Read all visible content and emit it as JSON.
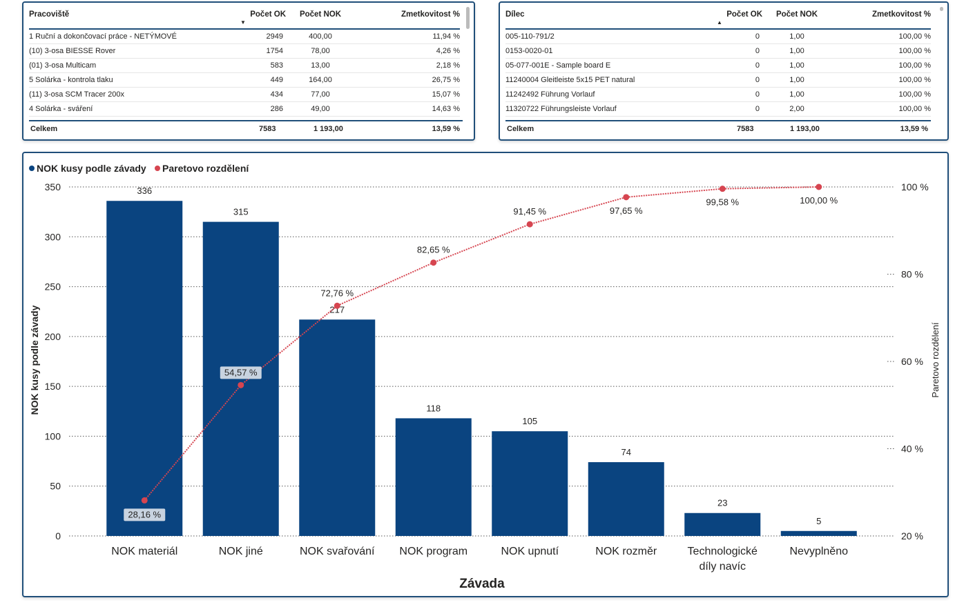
{
  "table_workplaces": {
    "headers": [
      "Pracoviště",
      "Počet OK",
      "Počet NOK",
      "Zmetkovitost %"
    ],
    "rows": [
      [
        "1 Ruční a dokončovací práce - NETÝMOVÉ",
        "2949",
        "400,00",
        "11,94 %"
      ],
      [
        "(10) 3-osa BIESSE Rover",
        "1754",
        "78,00",
        "4,26 %"
      ],
      [
        "(01) 3-osa Multicam",
        "583",
        "13,00",
        "2,18 %"
      ],
      [
        "5 Solárka - kontrola tlaku",
        "449",
        "164,00",
        "26,75 %"
      ],
      [
        "(11) 3-osa SCM Tracer 200x",
        "434",
        "77,00",
        "15,07 %"
      ],
      [
        "4 Solárka - sváření",
        "286",
        "49,00",
        "14,63 %"
      ]
    ],
    "total": [
      "Celkem",
      "7583",
      "1 193,00",
      "13,59 %"
    ],
    "sort": "descending"
  },
  "table_parts": {
    "headers": [
      "Dílec",
      "Počet OK",
      "Počet NOK",
      "Zmetkovitost %"
    ],
    "rows": [
      [
        "005-110-791/2",
        "0",
        "1,00",
        "100,00 %"
      ],
      [
        "0153-0020-01",
        "0",
        "1,00",
        "100,00 %"
      ],
      [
        "05-077-001E - Sample board E",
        "0",
        "1,00",
        "100,00 %"
      ],
      [
        "11240004 Gleitleiste 5x15 PET natural",
        "0",
        "1,00",
        "100,00 %"
      ],
      [
        "11242492 Führung Vorlauf",
        "0",
        "1,00",
        "100,00 %"
      ],
      [
        "11320722 Führungsleiste Vorlauf",
        "0",
        "2,00",
        "100,00 %"
      ]
    ],
    "total": [
      "Celkem",
      "7583",
      "1 193,00",
      "13,59 %"
    ],
    "sort": "ascending"
  },
  "chart_data": {
    "type": "bar",
    "categories": [
      "NOK materiál",
      "NOK jiné",
      "NOK svařování",
      "NOK program",
      "NOK upnutí",
      "NOK rozměr",
      "Technologické díly navíc",
      "Nevyplněno"
    ],
    "series": [
      {
        "name": "NOK kusy podle závady",
        "type": "bar",
        "axis": "left",
        "color": "#0a4480",
        "values": [
          336,
          315,
          217,
          118,
          105,
          74,
          23,
          5
        ],
        "labels": [
          "336",
          "315",
          "217",
          "118",
          "105",
          "74",
          "23",
          "5"
        ]
      },
      {
        "name": "Paretovo rozdělení",
        "type": "line",
        "axis": "right",
        "color": "#d64550",
        "values": [
          28.16,
          54.57,
          72.76,
          82.65,
          91.45,
          97.65,
          99.58,
          100.0
        ],
        "labels": [
          "28,16 %",
          "54,57 %",
          "72,76 %",
          "82,65 %",
          "91,45 %",
          "97,65 %",
          "99,58 %",
          "100,00 %"
        ]
      }
    ],
    "xlabel": "Závada",
    "ylabel": "NOK kusy podle závady",
    "y2label": "Paretovo rozdělení",
    "ylim": [
      0,
      350
    ],
    "yticks": [
      "0",
      "50",
      "100",
      "150",
      "200",
      "250",
      "300",
      "350"
    ],
    "y2lim": [
      20,
      100
    ],
    "y2ticks": [
      "20 %",
      "40 %",
      "60 %",
      "80 %",
      "100 %"
    ],
    "grid": true,
    "legend_position": "top-left"
  }
}
